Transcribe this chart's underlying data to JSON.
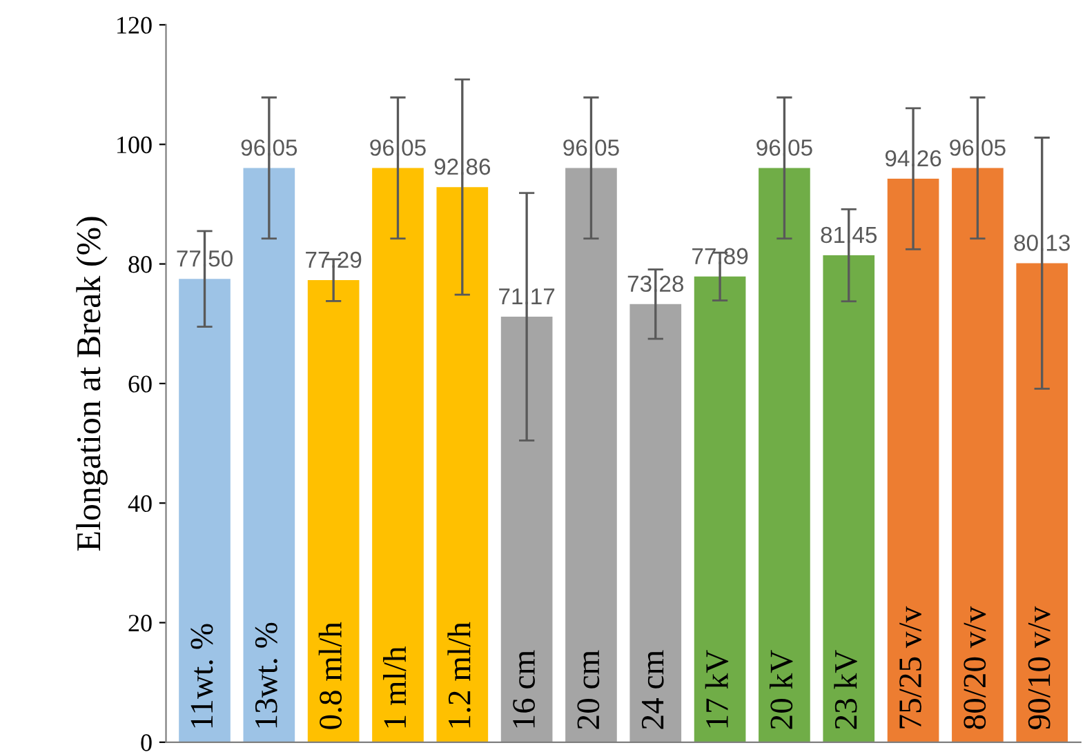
{
  "chart_data": {
    "type": "bar",
    "ylabel": "Elongation at Break (%)",
    "categories": [
      "11wt. %",
      "13wt. %",
      "0.8 ml/h",
      "1 ml/h",
      "1.2 ml/h",
      "16 cm",
      "20 cm",
      "24 cm",
      "17 kV",
      "20 kV",
      "23 kV",
      "75/25 v/v",
      "80/20 v/v",
      "90/10 v/v"
    ],
    "values": [
      77.5,
      96.05,
      77.29,
      96.05,
      92.86,
      71.17,
      96.05,
      73.28,
      77.89,
      96.05,
      81.45,
      94.26,
      96.05,
      80.13
    ],
    "value_labels": [
      "77.50",
      "96.05",
      "77.29",
      "96.05",
      "92.86",
      "71.17",
      "96.05",
      "73.28",
      "77.89",
      "96.05",
      "81.45",
      "94.26",
      "96.05",
      "80.13"
    ],
    "colors": [
      "#9dc3e6",
      "#9dc3e6",
      "#ffc000",
      "#ffc000",
      "#ffc000",
      "#a5a5a5",
      "#a5a5a5",
      "#a5a5a5",
      "#70ad47",
      "#70ad47",
      "#70ad47",
      "#ed7d31",
      "#ed7d31",
      "#ed7d31"
    ],
    "errors": [
      8,
      11.8,
      3.5,
      11.8,
      18,
      20.7,
      11.8,
      5.8,
      4,
      11.8,
      7.7,
      11.8,
      11.8,
      21
    ],
    "ylim": [
      0,
      120
    ],
    "yticks": [
      0,
      20,
      40,
      60,
      80,
      100,
      120
    ],
    "grid": false,
    "legend": false
  }
}
